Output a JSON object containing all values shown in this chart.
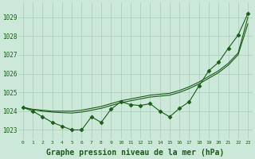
{
  "background_color": "#cce8d8",
  "grid_color": "#aaccbb",
  "line_color": "#1a5c1a",
  "marker_color": "#1a5c1a",
  "xlabel": "Graphe pression niveau de la mer (hPa)",
  "xlabel_fontsize": 7,
  "xlim": [
    -0.5,
    23.5
  ],
  "ylim": [
    1022.5,
    1029.8
  ],
  "yticks": [
    1023,
    1024,
    1025,
    1026,
    1027,
    1028,
    1029
  ],
  "xticks": [
    0,
    1,
    2,
    3,
    4,
    5,
    6,
    7,
    8,
    9,
    10,
    11,
    12,
    13,
    14,
    15,
    16,
    17,
    18,
    19,
    20,
    21,
    22,
    23
  ],
  "series_main": [
    1024.2,
    1024.0,
    1023.7,
    1023.4,
    1023.2,
    1023.0,
    1023.0,
    1023.7,
    1023.4,
    1024.1,
    1024.5,
    1024.35,
    1024.3,
    1024.4,
    1024.0,
    1023.7,
    1024.15,
    1024.5,
    1025.35,
    1026.15,
    1026.6,
    1027.35,
    1028.05,
    1029.2
  ],
  "series_smooth1": [
    1024.2,
    1024.1,
    1024.05,
    1024.0,
    1024.0,
    1024.0,
    1024.05,
    1024.15,
    1024.25,
    1024.4,
    1024.55,
    1024.65,
    1024.75,
    1024.85,
    1024.9,
    1024.95,
    1025.1,
    1025.3,
    1025.55,
    1025.85,
    1026.15,
    1026.55,
    1027.1,
    1029.0
  ],
  "series_smooth2": [
    1024.2,
    1024.08,
    1024.0,
    1023.95,
    1023.92,
    1023.9,
    1023.95,
    1024.05,
    1024.15,
    1024.3,
    1024.45,
    1024.55,
    1024.65,
    1024.75,
    1024.8,
    1024.85,
    1025.0,
    1025.2,
    1025.45,
    1025.75,
    1026.05,
    1026.45,
    1027.0,
    1028.65
  ],
  "marker_style": "D",
  "marker_size": 2.5
}
